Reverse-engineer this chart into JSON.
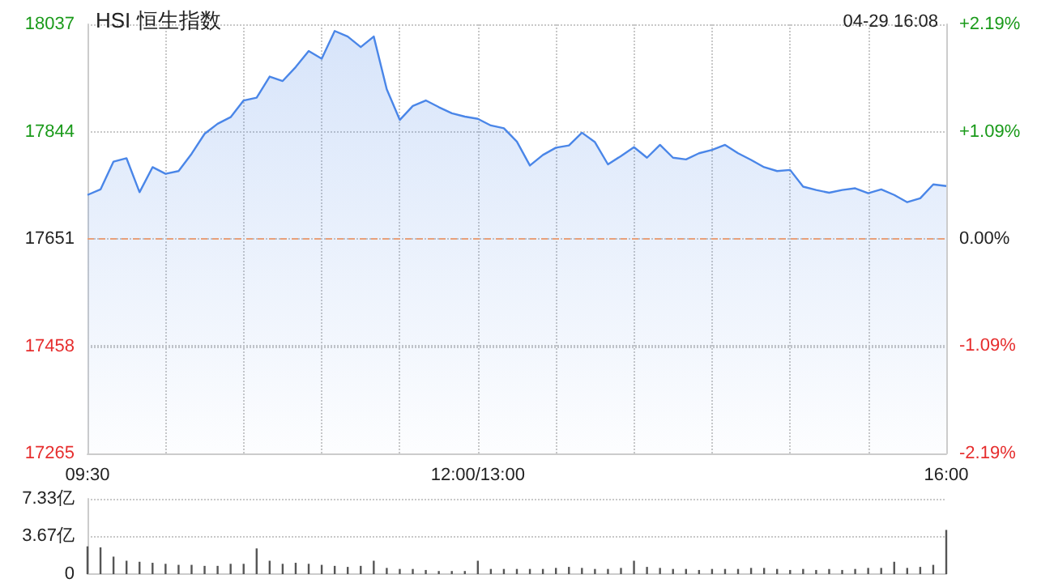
{
  "chart_data": [
    {
      "type": "area",
      "title": "HSI 恒生指数",
      "annotations": [
        "04-29 16:08"
      ],
      "color": "#4a86e8",
      "categories": [
        "09:30",
        null,
        null,
        null,
        null,
        null,
        null,
        null,
        null,
        null,
        null,
        null,
        null,
        null,
        null,
        null,
        null,
        null,
        null,
        null,
        null,
        null,
        null,
        null,
        null,
        null,
        null,
        null,
        null,
        null,
        "12:00/13:00",
        null,
        null,
        null,
        null,
        null,
        null,
        null,
        null,
        null,
        null,
        null,
        null,
        null,
        null,
        null,
        null,
        null,
        null,
        null,
        null,
        null,
        null,
        null,
        null,
        null,
        null,
        null,
        null,
        null,
        null,
        null,
        null,
        null,
        null,
        null,
        "16:00"
      ],
      "values": [
        17730,
        17740,
        17790,
        17796,
        17735,
        17780,
        17768,
        17773,
        17804,
        17840,
        17858,
        17870,
        17900,
        17905,
        17943,
        17935,
        17960,
        17989,
        17975,
        18025,
        18015,
        17996,
        18015,
        17920,
        17865,
        17890,
        17900,
        17888,
        17877,
        17871,
        17867,
        17855,
        17850,
        17826,
        17783,
        17802,
        17815,
        17819,
        17842,
        17825,
        17785,
        17800,
        17816,
        17797,
        17820,
        17797,
        17794,
        17805,
        17811,
        17820,
        17805,
        17793,
        17780,
        17773,
        17775,
        17745,
        17739,
        17734,
        17739,
        17742,
        17733,
        17740,
        17730,
        17717,
        17724,
        17749,
        17746
      ],
      "ylim": [
        17265,
        18037
      ],
      "yticks": [
        17265,
        17458,
        17651,
        17844,
        18037
      ],
      "y2lim": [
        -2.19,
        2.19
      ],
      "y2ticks": [
        {
          "value": -2.19,
          "label": "-2.19%"
        },
        {
          "value": -1.09,
          "label": "-1.09%"
        },
        {
          "value": 0,
          "label": "0.00%"
        },
        {
          "value": 1.09,
          "label": "+1.09%"
        },
        {
          "value": 2.19,
          "label": "+2.19%"
        }
      ],
      "ref_lines": [
        {
          "axis": "y",
          "value": 17651,
          "color": "#e8a07a",
          "line_style": "dashed"
        }
      ],
      "grid": true
    },
    {
      "type": "bar",
      "color": "#555555",
      "categories": [
        null,
        null,
        null,
        null,
        null,
        null,
        null,
        null,
        null,
        null,
        null,
        null,
        null,
        null,
        null,
        null,
        null,
        null,
        null,
        null,
        null,
        null,
        null,
        null,
        null,
        null,
        null,
        null,
        null,
        null,
        null,
        null,
        null,
        null,
        null,
        null,
        null,
        null,
        null,
        null,
        null,
        null,
        null,
        null,
        null,
        null,
        null,
        null,
        null,
        null,
        null,
        null,
        null,
        null,
        null,
        null,
        null,
        null,
        null,
        null,
        null,
        null,
        null,
        null,
        null,
        null,
        null
      ],
      "values": [
        2.7,
        2.6,
        1.7,
        1.3,
        1.2,
        1.1,
        1.0,
        0.9,
        0.9,
        0.8,
        0.8,
        1.0,
        1.0,
        2.5,
        1.3,
        1.0,
        1.1,
        1.0,
        0.9,
        0.8,
        0.7,
        0.8,
        1.3,
        0.6,
        0.5,
        0.5,
        0.4,
        0.3,
        0.3,
        0.3,
        1.3,
        0.5,
        0.5,
        0.5,
        0.5,
        0.5,
        0.6,
        0.7,
        0.6,
        0.5,
        0.5,
        0.6,
        1.3,
        0.7,
        0.6,
        0.5,
        0.5,
        0.4,
        0.5,
        0.5,
        0.5,
        0.6,
        0.6,
        0.5,
        0.4,
        0.5,
        0.4,
        0.5,
        0.4,
        0.5,
        0.6,
        0.6,
        1.2,
        0.6,
        0.7,
        0.9,
        4.3
      ],
      "ylim": [
        0,
        7.33
      ],
      "yticks": [
        0,
        {
          "value": 3.67,
          "label": "3.67亿"
        },
        {
          "value": 7.33,
          "label": "7.33亿"
        }
      ],
      "grid": "y",
      "tick_labels": "y"
    }
  ]
}
